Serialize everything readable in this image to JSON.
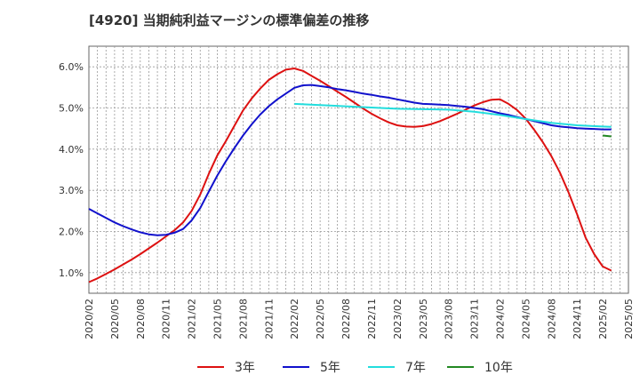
{
  "chart_data": {
    "type": "line",
    "title": "[4920]  当期純利益マージンの標準偏差の推移",
    "xlabel": "",
    "ylabel": "",
    "ylim": [
      0.5,
      6.5
    ],
    "yticks": [
      "1.0%",
      "2.0%",
      "3.0%",
      "4.0%",
      "5.0%",
      "6.0%"
    ],
    "ytick_values": [
      1.0,
      2.0,
      3.0,
      4.0,
      5.0,
      6.0
    ],
    "x_tick_labels": [
      "2020/02",
      "2020/05",
      "2020/08",
      "2020/11",
      "2021/02",
      "2021/05",
      "2021/08",
      "2021/11",
      "2022/02",
      "2022/05",
      "2022/08",
      "2022/11",
      "2023/02",
      "2023/05",
      "2023/08",
      "2023/11",
      "2024/02",
      "2024/05",
      "2024/08",
      "2024/11",
      "2025/02",
      "2025/05"
    ],
    "grid": true,
    "legend_position": "bottom",
    "series": [
      {
        "name": "3年",
        "color": "#dd1111",
        "points": [
          [
            "2020/02",
            0.77
          ],
          [
            "2020/03",
            0.86
          ],
          [
            "2020/04",
            0.97
          ],
          [
            "2020/05",
            1.08
          ],
          [
            "2020/06",
            1.2
          ],
          [
            "2020/07",
            1.32
          ],
          [
            "2020/08",
            1.45
          ],
          [
            "2020/09",
            1.59
          ],
          [
            "2020/10",
            1.73
          ],
          [
            "2020/11",
            1.88
          ],
          [
            "2020/12",
            2.03
          ],
          [
            "2021/01",
            2.22
          ],
          [
            "2021/02",
            2.5
          ],
          [
            "2021/03",
            2.9
          ],
          [
            "2021/04",
            3.4
          ],
          [
            "2021/05",
            3.85
          ],
          [
            "2021/06",
            4.2
          ],
          [
            "2021/07",
            4.57
          ],
          [
            "2021/08",
            4.94
          ],
          [
            "2021/09",
            5.23
          ],
          [
            "2021/10",
            5.47
          ],
          [
            "2021/11",
            5.68
          ],
          [
            "2021/12",
            5.82
          ],
          [
            "2022/01",
            5.93
          ],
          [
            "2022/02",
            5.96
          ],
          [
            "2022/03",
            5.9
          ],
          [
            "2022/04",
            5.78
          ],
          [
            "2022/05",
            5.66
          ],
          [
            "2022/06",
            5.53
          ],
          [
            "2022/07",
            5.4
          ],
          [
            "2022/08",
            5.27
          ],
          [
            "2022/09",
            5.13
          ],
          [
            "2022/10",
            4.99
          ],
          [
            "2022/11",
            4.86
          ],
          [
            "2022/12",
            4.75
          ],
          [
            "2023/01",
            4.65
          ],
          [
            "2023/02",
            4.58
          ],
          [
            "2023/03",
            4.55
          ],
          [
            "2023/04",
            4.54
          ],
          [
            "2023/05",
            4.56
          ],
          [
            "2023/06",
            4.61
          ],
          [
            "2023/07",
            4.68
          ],
          [
            "2023/08",
            4.77
          ],
          [
            "2023/09",
            4.86
          ],
          [
            "2023/10",
            4.96
          ],
          [
            "2023/11",
            5.06
          ],
          [
            "2023/12",
            5.14
          ],
          [
            "2024/01",
            5.2
          ],
          [
            "2024/02",
            5.21
          ],
          [
            "2024/03",
            5.1
          ],
          [
            "2024/04",
            4.95
          ],
          [
            "2024/05",
            4.74
          ],
          [
            "2024/06",
            4.47
          ],
          [
            "2024/07",
            4.17
          ],
          [
            "2024/08",
            3.83
          ],
          [
            "2024/09",
            3.43
          ],
          [
            "2024/10",
            2.95
          ],
          [
            "2024/11",
            2.42
          ],
          [
            "2024/12",
            1.85
          ],
          [
            "2025/01",
            1.45
          ],
          [
            "2025/02",
            1.15
          ],
          [
            "2025/03",
            1.05
          ]
        ]
      },
      {
        "name": "5年",
        "color": "#1111cc",
        "points": [
          [
            "2020/02",
            2.55
          ],
          [
            "2020/03",
            2.44
          ],
          [
            "2020/04",
            2.33
          ],
          [
            "2020/05",
            2.22
          ],
          [
            "2020/06",
            2.13
          ],
          [
            "2020/07",
            2.05
          ],
          [
            "2020/08",
            1.98
          ],
          [
            "2020/09",
            1.93
          ],
          [
            "2020/10",
            1.91
          ],
          [
            "2020/11",
            1.92
          ],
          [
            "2020/12",
            1.97
          ],
          [
            "2021/01",
            2.06
          ],
          [
            "2021/02",
            2.27
          ],
          [
            "2021/03",
            2.57
          ],
          [
            "2021/04",
            2.97
          ],
          [
            "2021/05",
            3.36
          ],
          [
            "2021/06",
            3.71
          ],
          [
            "2021/07",
            4.03
          ],
          [
            "2021/08",
            4.33
          ],
          [
            "2021/09",
            4.6
          ],
          [
            "2021/10",
            4.84
          ],
          [
            "2021/11",
            5.04
          ],
          [
            "2021/12",
            5.21
          ],
          [
            "2022/01",
            5.35
          ],
          [
            "2022/02",
            5.49
          ],
          [
            "2022/03",
            5.55
          ],
          [
            "2022/04",
            5.56
          ],
          [
            "2022/05",
            5.53
          ],
          [
            "2022/06",
            5.5
          ],
          [
            "2022/07",
            5.46
          ],
          [
            "2022/08",
            5.43
          ],
          [
            "2022/09",
            5.39
          ],
          [
            "2022/10",
            5.35
          ],
          [
            "2022/11",
            5.32
          ],
          [
            "2022/12",
            5.28
          ],
          [
            "2023/01",
            5.25
          ],
          [
            "2023/02",
            5.21
          ],
          [
            "2023/03",
            5.17
          ],
          [
            "2023/04",
            5.13
          ],
          [
            "2023/05",
            5.1
          ],
          [
            "2023/06",
            5.09
          ],
          [
            "2023/07",
            5.08
          ],
          [
            "2023/08",
            5.07
          ],
          [
            "2023/09",
            5.05
          ],
          [
            "2023/10",
            5.03
          ],
          [
            "2023/11",
            5.0
          ],
          [
            "2023/12",
            4.97
          ],
          [
            "2024/01",
            4.92
          ],
          [
            "2024/02",
            4.87
          ],
          [
            "2024/03",
            4.83
          ],
          [
            "2024/04",
            4.78
          ],
          [
            "2024/05",
            4.73
          ],
          [
            "2024/06",
            4.68
          ],
          [
            "2024/07",
            4.63
          ],
          [
            "2024/08",
            4.58
          ],
          [
            "2024/09",
            4.55
          ],
          [
            "2024/10",
            4.53
          ],
          [
            "2024/11",
            4.51
          ],
          [
            "2024/12",
            4.5
          ],
          [
            "2025/01",
            4.49
          ],
          [
            "2025/02",
            4.48
          ],
          [
            "2025/03",
            4.48
          ]
        ]
      },
      {
        "name": "7年",
        "color": "#22dddd",
        "points": [
          [
            "2022/02",
            5.1
          ],
          [
            "2022/05",
            5.07
          ],
          [
            "2022/08",
            5.04
          ],
          [
            "2022/11",
            5.01
          ],
          [
            "2023/02",
            4.98
          ],
          [
            "2023/05",
            4.97
          ],
          [
            "2023/08",
            4.96
          ],
          [
            "2023/11",
            4.91
          ],
          [
            "2024/02",
            4.83
          ],
          [
            "2024/05",
            4.73
          ],
          [
            "2024/08",
            4.64
          ],
          [
            "2024/11",
            4.58
          ],
          [
            "2025/02",
            4.55
          ],
          [
            "2025/03",
            4.54
          ]
        ]
      },
      {
        "name": "10年",
        "color": "#228822",
        "points": [
          [
            "2025/02",
            4.33
          ],
          [
            "2025/03",
            4.31
          ]
        ]
      }
    ]
  }
}
